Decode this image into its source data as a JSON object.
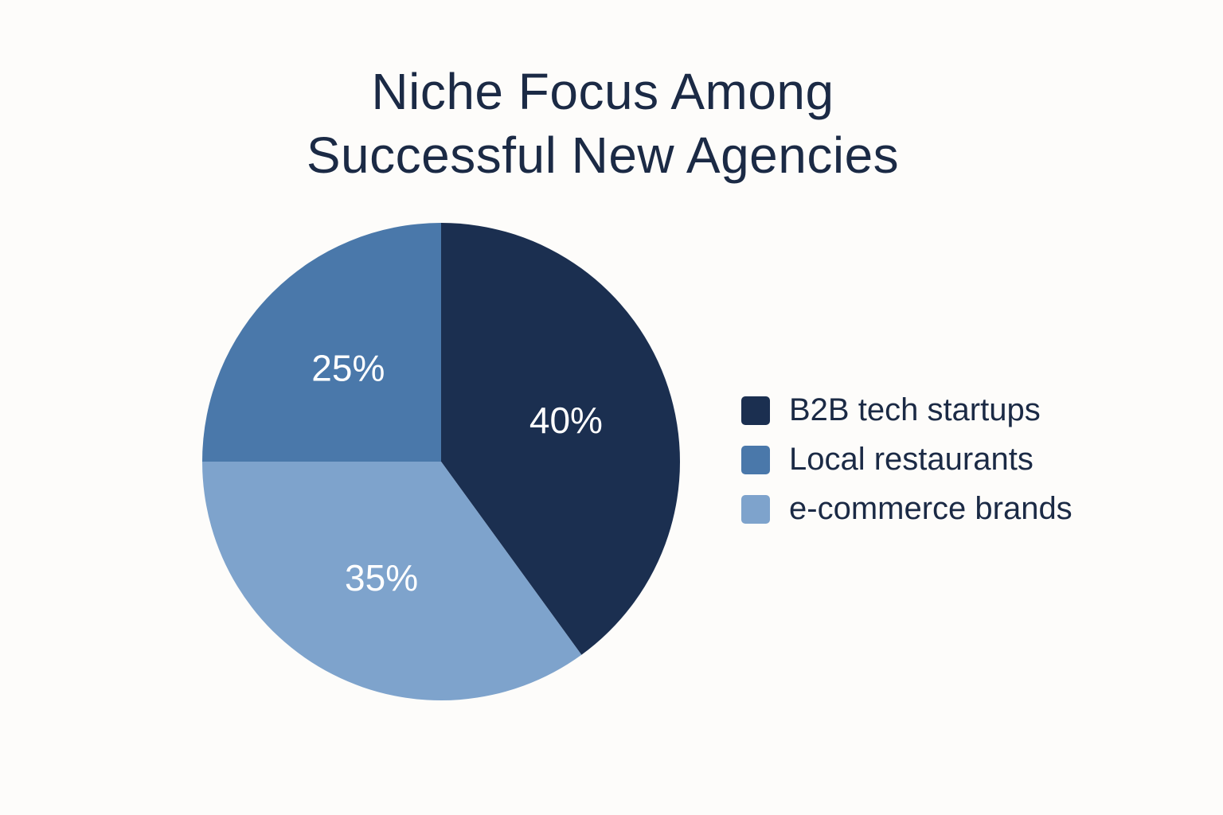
{
  "chart_data": {
    "type": "pie",
    "title_lines": [
      "Niche Focus Among",
      "Successful New Agencies"
    ],
    "slices": [
      {
        "label": "B2B tech startups",
        "value": 40,
        "display": "40%",
        "color": "#1b2f50"
      },
      {
        "label": "e-commerce brands",
        "value": 35,
        "display": "35%",
        "color": "#7ea3cc"
      },
      {
        "label": "Local restaurants",
        "value": 25,
        "display": "25%",
        "color": "#4a78aa"
      }
    ],
    "legend": {
      "placement": "right",
      "entries": [
        {
          "label": "B2B tech startups",
          "color": "#1b2f50"
        },
        {
          "label": "Local restaurants",
          "color": "#4a78aa"
        },
        {
          "label": "e-commerce brands",
          "color": "#7ea3cc"
        }
      ]
    },
    "start_angle": "12 o'clock",
    "direction": "clockwise"
  }
}
